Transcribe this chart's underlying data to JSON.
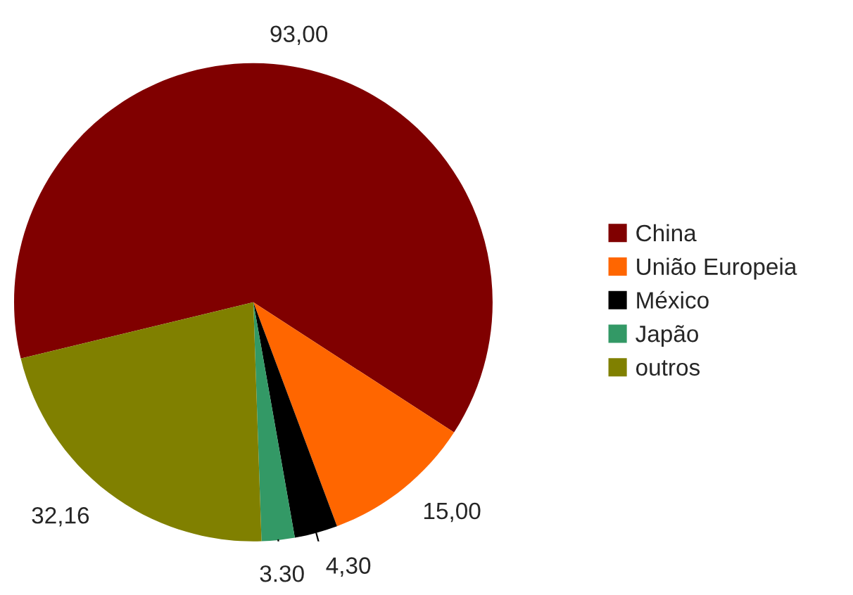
{
  "chart_data": {
    "type": "pie",
    "categories": [
      "China",
      "União Europeia",
      "México",
      "Japão",
      "outros"
    ],
    "values": [
      93.0,
      15.0,
      4.3,
      3.3,
      32.16
    ],
    "value_labels": [
      "93,00",
      "15,00",
      "4,30",
      "3.30",
      "32,16"
    ],
    "colors": [
      "#800000",
      "#ff6600",
      "#000000",
      "#339966",
      "#808000"
    ],
    "legend": "right"
  }
}
